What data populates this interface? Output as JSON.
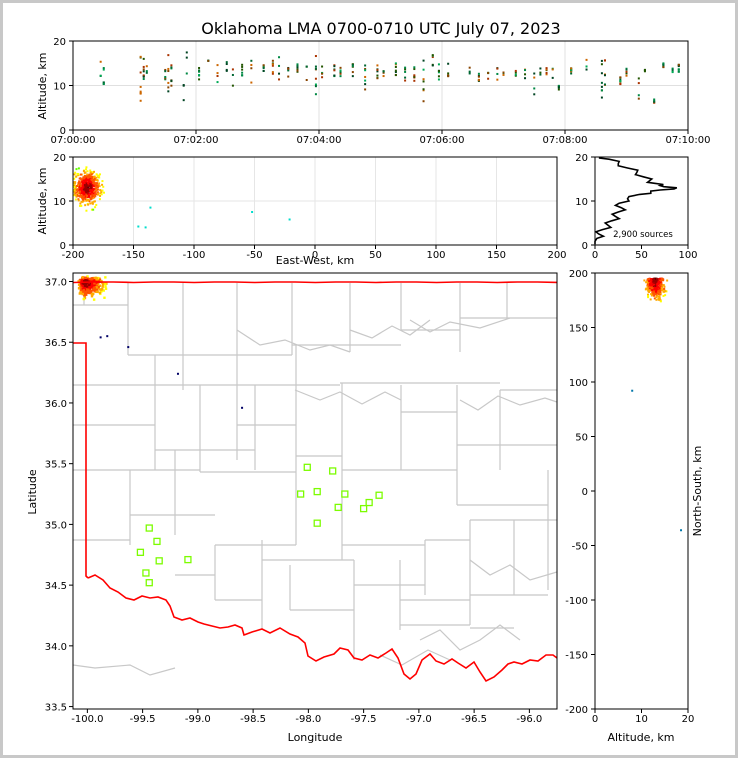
{
  "chart_data": {
    "title": "Oklahoma LMA 0700-0710 UTC July 07, 2023",
    "type": "scatter",
    "panels": {
      "time_altitude": {
        "ylabel": "Altitude, km",
        "ylim": [
          0,
          20
        ],
        "yticks": [
          "0",
          "10",
          "20"
        ],
        "xticks": [
          "07:00:00",
          "07:02:00",
          "07:04:00",
          "07:06:00",
          "07:08:00",
          "07:10:00"
        ],
        "xlim": [
          0,
          10
        ],
        "columns_minutes": [
          0.45,
          0.5,
          1.1,
          1.15,
          1.2,
          1.5,
          1.55,
          1.6,
          1.8,
          1.85,
          2.05,
          2.2,
          2.35,
          2.5,
          2.6,
          2.75,
          2.9,
          3.1,
          3.25,
          3.35,
          3.5,
          3.65,
          3.8,
          3.95,
          4.05,
          4.25,
          4.35,
          4.55,
          4.75,
          4.95,
          5.05,
          5.25,
          5.4,
          5.55,
          5.7,
          5.85,
          5.95,
          6.1,
          6.45,
          6.6,
          6.75,
          6.9,
          7.0,
          7.2,
          7.35,
          7.5,
          7.6,
          7.7,
          7.8,
          7.9,
          8.1,
          8.35,
          8.6,
          8.65,
          8.9,
          9.0,
          9.2,
          9.3,
          9.45,
          9.6,
          9.75,
          9.85
        ],
        "column_heights_km": [
          [
            12,
            16
          ],
          [
            9,
            14
          ],
          [
            6,
            17
          ],
          [
            10,
            16
          ],
          [
            7,
            18
          ],
          [
            11,
            15
          ],
          [
            8,
            17
          ],
          [
            9,
            16
          ],
          [
            6,
            15
          ],
          [
            10,
            18
          ],
          [
            11,
            14
          ],
          [
            12,
            16
          ],
          [
            9,
            15
          ],
          [
            11,
            16
          ],
          [
            8,
            14
          ],
          [
            12,
            15
          ],
          [
            10,
            16
          ],
          [
            11,
            15
          ],
          [
            12,
            16
          ],
          [
            11,
            17
          ],
          [
            12,
            14
          ],
          [
            13,
            15
          ],
          [
            10,
            15
          ],
          [
            8,
            17
          ],
          [
            11,
            15
          ],
          [
            12,
            15
          ],
          [
            12,
            14
          ],
          [
            12,
            15
          ],
          [
            8,
            15
          ],
          [
            11,
            15
          ],
          [
            12,
            14
          ],
          [
            12,
            15
          ],
          [
            10,
            17
          ],
          [
            11,
            15
          ],
          [
            6,
            19
          ],
          [
            10,
            17
          ],
          [
            11,
            16
          ],
          [
            12,
            15
          ],
          [
            11,
            15
          ],
          [
            11,
            14
          ],
          [
            8,
            13
          ],
          [
            10,
            14
          ],
          [
            12,
            13
          ],
          [
            12,
            14
          ],
          [
            11,
            14
          ],
          [
            8,
            13
          ],
          [
            12,
            14
          ],
          [
            12,
            14
          ],
          [
            11,
            14
          ],
          [
            9,
            10
          ],
          [
            12,
            14
          ],
          [
            11,
            16
          ],
          [
            6,
            17
          ],
          [
            7,
            16
          ],
          [
            10,
            12
          ],
          [
            12,
            15
          ],
          [
            7,
            13
          ],
          [
            13,
            14
          ],
          [
            6,
            7
          ],
          [
            14,
            15
          ],
          [
            13,
            14
          ],
          [
            13,
            15
          ]
        ]
      },
      "east_west_altitude": {
        "xlabel": "East-West, km",
        "ylabel": "Altitude, km",
        "xlim": [
          -200,
          200
        ],
        "ylim": [
          0,
          20
        ],
        "xticks": [
          "-200",
          "-150",
          "-100",
          "-50",
          "0",
          "50",
          "100",
          "150",
          "200"
        ],
        "yticks": [
          "0",
          "10",
          "20"
        ],
        "core_center": [
          -188,
          13
        ],
        "isolated_points": [
          [
            -136,
            8.5
          ],
          [
            -52,
            7.5
          ],
          [
            -21,
            5.8
          ],
          [
            -146,
            4.2
          ],
          [
            -140,
            4
          ]
        ]
      },
      "altitude_histogram": {
        "xlim": [
          0,
          100
        ],
        "ylim": [
          0,
          20
        ],
        "xticks": [
          "0",
          "50",
          "100"
        ],
        "yticks": [
          "0",
          "10",
          "20"
        ],
        "annotation": "2,900 sources",
        "profile": [
          [
            0,
            0.2
          ],
          [
            2,
            1.5
          ],
          [
            4,
            2.5
          ],
          [
            8,
            3.5
          ],
          [
            14,
            4.5
          ],
          [
            18,
            5.5
          ],
          [
            22,
            6.5
          ],
          [
            25,
            7.5
          ],
          [
            28,
            8.5
          ],
          [
            26,
            9.5
          ],
          [
            35,
            10.5
          ],
          [
            48,
            11.5
          ],
          [
            60,
            12
          ],
          [
            70,
            12.5
          ],
          [
            88,
            13
          ],
          [
            70,
            13.5
          ],
          [
            65,
            14
          ],
          [
            58,
            14.5
          ],
          [
            52,
            15.5
          ],
          [
            45,
            16.5
          ],
          [
            35,
            17.5
          ],
          [
            25,
            18.5
          ],
          [
            15,
            19.5
          ],
          [
            5,
            20
          ]
        ]
      },
      "plan_view": {
        "xlabel": "Longitude",
        "ylabel": "Latitude",
        "xlim": [
          -100.13,
          -95.75
        ],
        "ylim": [
          33.48,
          37.07
        ],
        "xticks": [
          "-100.0",
          "-99.5",
          "-99.0",
          "-98.5",
          "-98.0",
          "-97.5",
          "-97.0",
          "-96.5",
          "-96.0"
        ],
        "yticks": [
          "33.5",
          "34.0",
          "34.5",
          "35.0",
          "35.5",
          "36.0",
          "36.5",
          "37.0"
        ],
        "border_color": "#ff0000",
        "county_color": "#c8c8c8",
        "station_color": "#7cfc00",
        "stations": [
          [
            -99.44,
            34.97
          ],
          [
            -99.37,
            34.86
          ],
          [
            -99.52,
            34.77
          ],
          [
            -99.35,
            34.7
          ],
          [
            -99.47,
            34.6
          ],
          [
            -99.44,
            34.52
          ],
          [
            -99.09,
            34.71
          ],
          [
            -98.01,
            35.47
          ],
          [
            -97.78,
            35.44
          ],
          [
            -98.07,
            35.25
          ],
          [
            -97.92,
            35.27
          ],
          [
            -97.67,
            35.25
          ],
          [
            -97.36,
            35.24
          ],
          [
            -97.45,
            35.18
          ],
          [
            -97.73,
            35.14
          ],
          [
            -97.5,
            35.13
          ],
          [
            -97.92,
            35.01
          ]
        ],
        "core_center": [
          -100.03,
          37.0
        ]
      },
      "north_south_altitude": {
        "xlabel": "Altitude, km",
        "ylabel": "North-South, km",
        "xlim": [
          0,
          20
        ],
        "ylim": [
          -200,
          200
        ],
        "xticks": [
          "0",
          "10",
          "20"
        ],
        "yticks": [
          "-200",
          "-150",
          "-100",
          "-50",
          "0",
          "50",
          "100",
          "150",
          "200"
        ],
        "core_center": [
          13,
          195
        ],
        "isolated_points": [
          [
            8,
            92
          ],
          [
            18.5,
            -36
          ]
        ]
      }
    }
  }
}
